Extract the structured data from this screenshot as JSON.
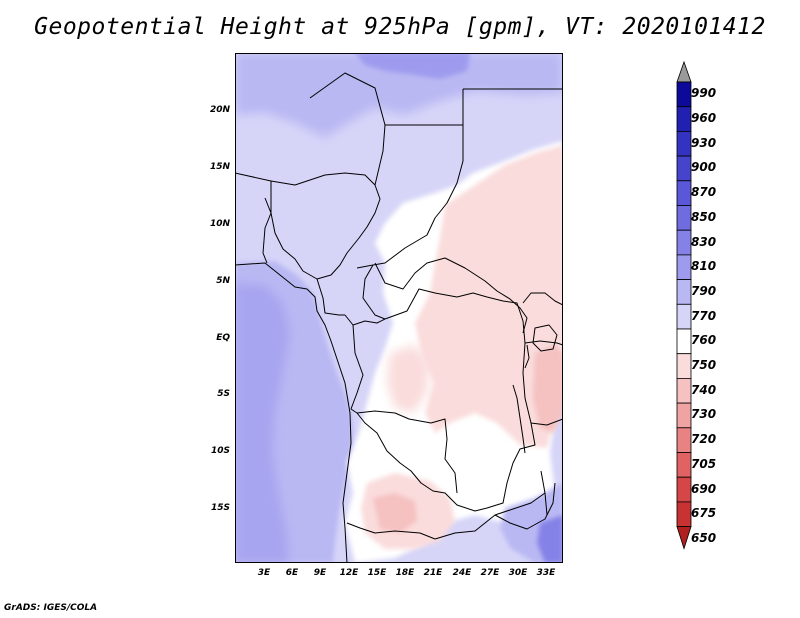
{
  "title": "Geopotential Height at 925hPa [gpm], VT: 2020101412",
  "credit": "GrADS: IGES/COLA",
  "map": {
    "lat_labels": [
      "20N",
      "15N",
      "10N",
      "5N",
      "EQ",
      "5S",
      "10S",
      "15S"
    ],
    "lon_labels": [
      "3E",
      "6E",
      "9E",
      "12E",
      "15E",
      "18E",
      "21E",
      "24E",
      "27E",
      "30E",
      "33E"
    ]
  },
  "colorbar": {
    "levels": [
      "990",
      "960",
      "930",
      "900",
      "870",
      "850",
      "830",
      "810",
      "790",
      "770",
      "760",
      "750",
      "740",
      "730",
      "720",
      "705",
      "690",
      "675",
      "650"
    ],
    "colors": [
      "#0d0a9a",
      "#2220b0",
      "#3432c0",
      "#4643cd",
      "#5a57d8",
      "#6f6ce0",
      "#8582e7",
      "#9e9bee",
      "#bab8f3",
      "#d6d5f8",
      "#ffffff",
      "#fadcdc",
      "#f5c1c1",
      "#f0a3a3",
      "#e98282",
      "#e06262",
      "#d54646",
      "#c83232",
      "#b02020"
    ]
  },
  "chart_data": {
    "type": "heatmap",
    "title": "Geopotential Height at 925hPa [gpm], VT: 2020101412",
    "variable": "Geopotential Height",
    "level": "925hPa",
    "units": "gpm",
    "valid_time": "2020101412",
    "x_ticks": [
      "3E",
      "6E",
      "9E",
      "12E",
      "15E",
      "18E",
      "21E",
      "24E",
      "27E",
      "30E",
      "33E"
    ],
    "y_ticks": [
      "20N",
      "15N",
      "10N",
      "5N",
      "EQ",
      "5S",
      "10S",
      "15S"
    ],
    "xlim": [
      0,
      35
    ],
    "ylim": [
      -20,
      25
    ],
    "contour_levels": [
      650,
      675,
      690,
      705,
      720,
      730,
      740,
      750,
      760,
      770,
      790,
      810,
      830,
      850,
      870,
      900,
      930,
      960,
      990
    ]
  }
}
